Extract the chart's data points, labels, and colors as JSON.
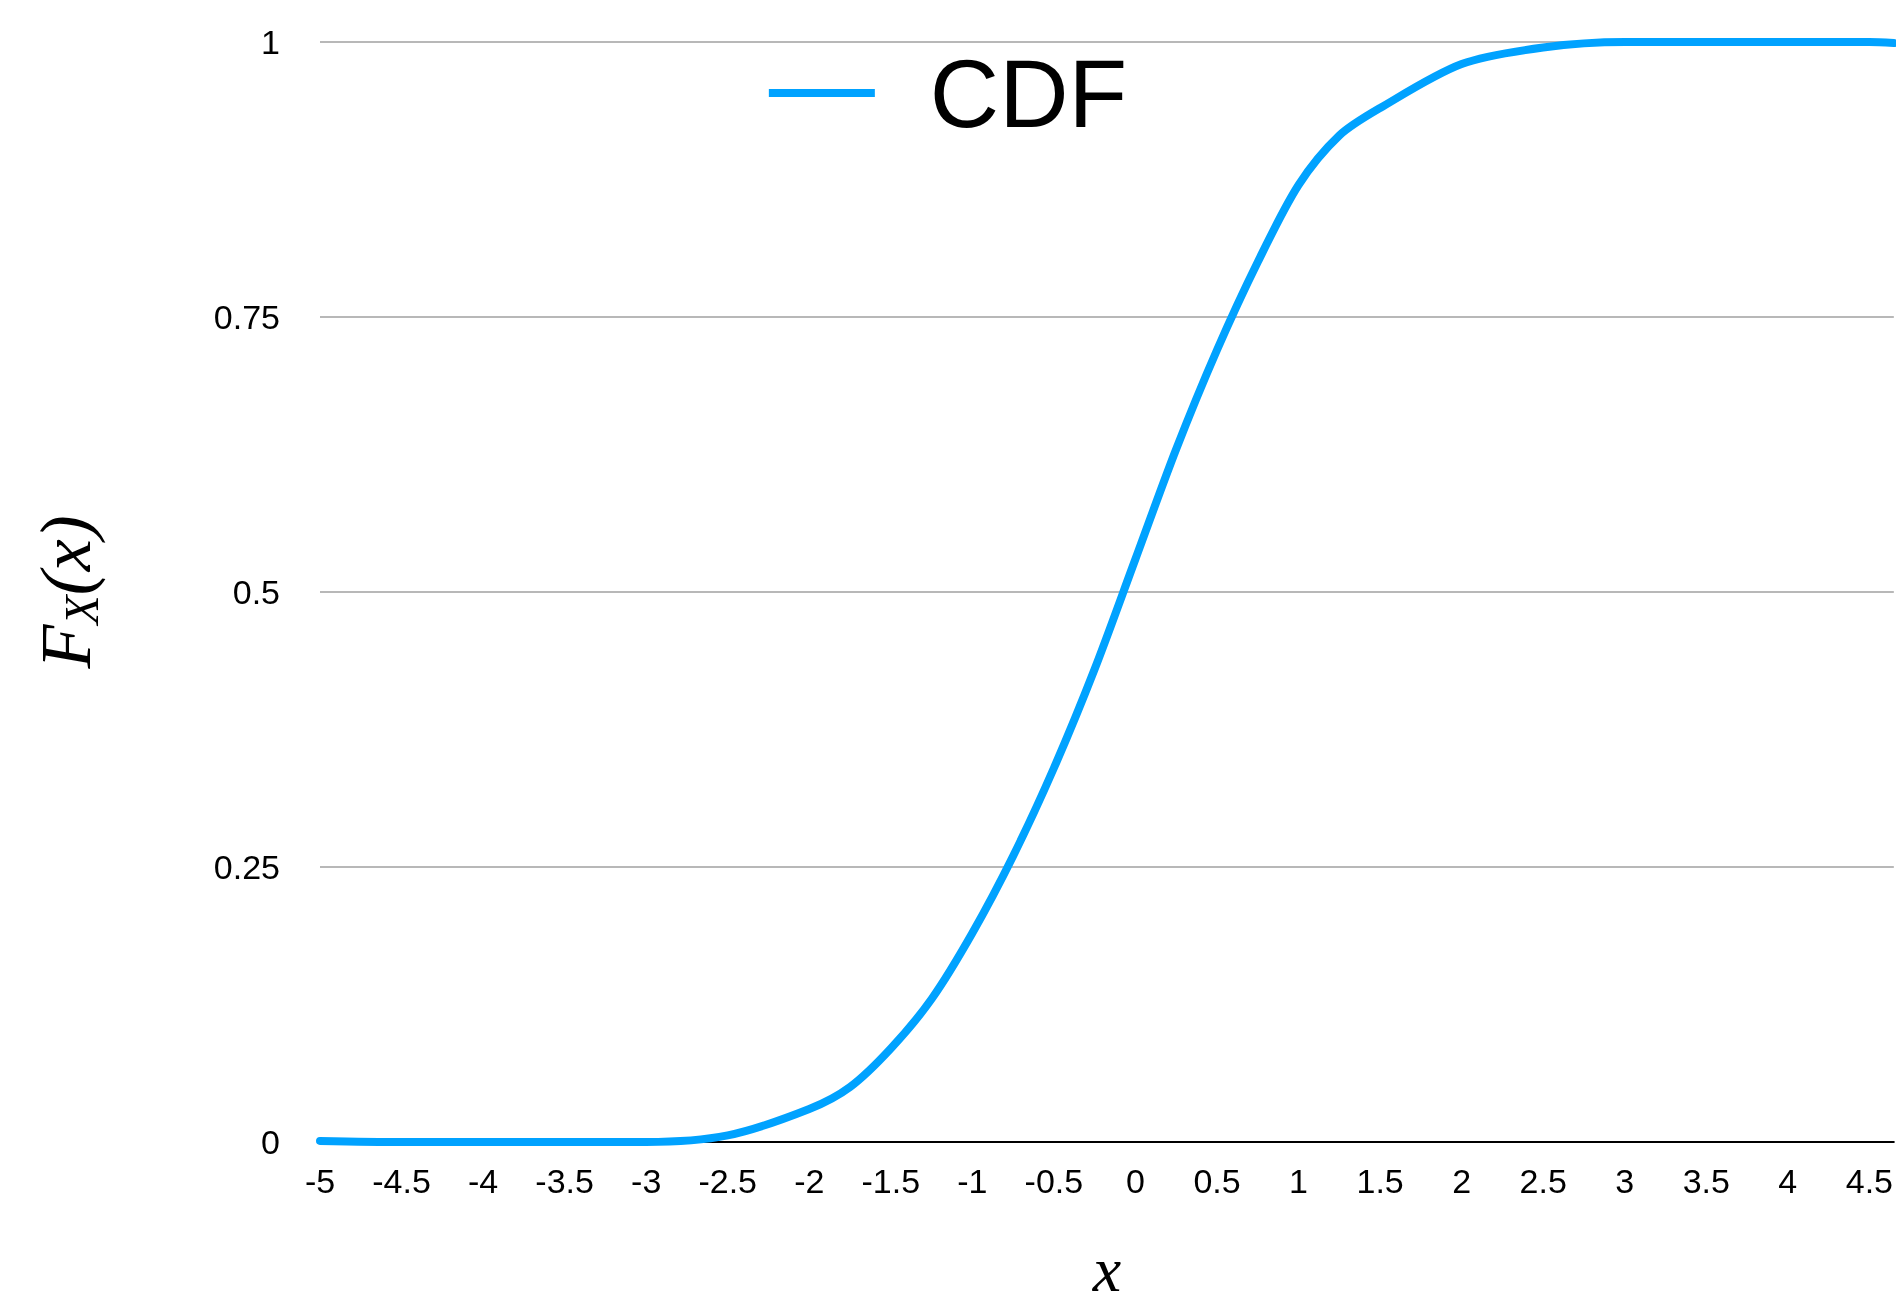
{
  "chart_data": {
    "type": "line",
    "xlabel": "x",
    "ylabel": "F$_{X}$(x)",
    "x": [
      -5,
      -4.5,
      -4,
      -3.5,
      -3,
      -2.5,
      -2,
      -1.75,
      -1.5,
      -1.25,
      -1,
      -0.75,
      -0.5,
      -0.25,
      0,
      0.25,
      0.5,
      0.75,
      1,
      1.25,
      1.5,
      2,
      2.5,
      3,
      3.5,
      4,
      4.5,
      4.65
    ],
    "series": [
      {
        "name": "CDF",
        "color": "#00a2ff",
        "values": [
          0.001,
          0,
          0,
          0,
          0,
          0.006,
          0.03,
          0.05,
          0.085,
          0.13,
          0.19,
          0.26,
          0.34,
          0.43,
          0.53,
          0.63,
          0.72,
          0.8,
          0.87,
          0.915,
          0.94,
          0.98,
          0.995,
          1.0,
          1.0,
          1.0,
          1.0,
          0.999
        ]
      }
    ],
    "xlim": [
      -5,
      4.65
    ],
    "xticks": [
      -5,
      -4.5,
      -4,
      -3.5,
      -3,
      -2.5,
      -2,
      -1.5,
      -1,
      -0.5,
      0,
      0.5,
      1,
      1.5,
      2,
      2.5,
      3,
      3.5,
      4,
      4.5
    ],
    "ylim": [
      0,
      1
    ],
    "yticks": [
      0,
      0.25,
      0.5,
      0.75,
      1
    ],
    "grid": "y",
    "legend": "top",
    "line_style": "solid"
  }
}
